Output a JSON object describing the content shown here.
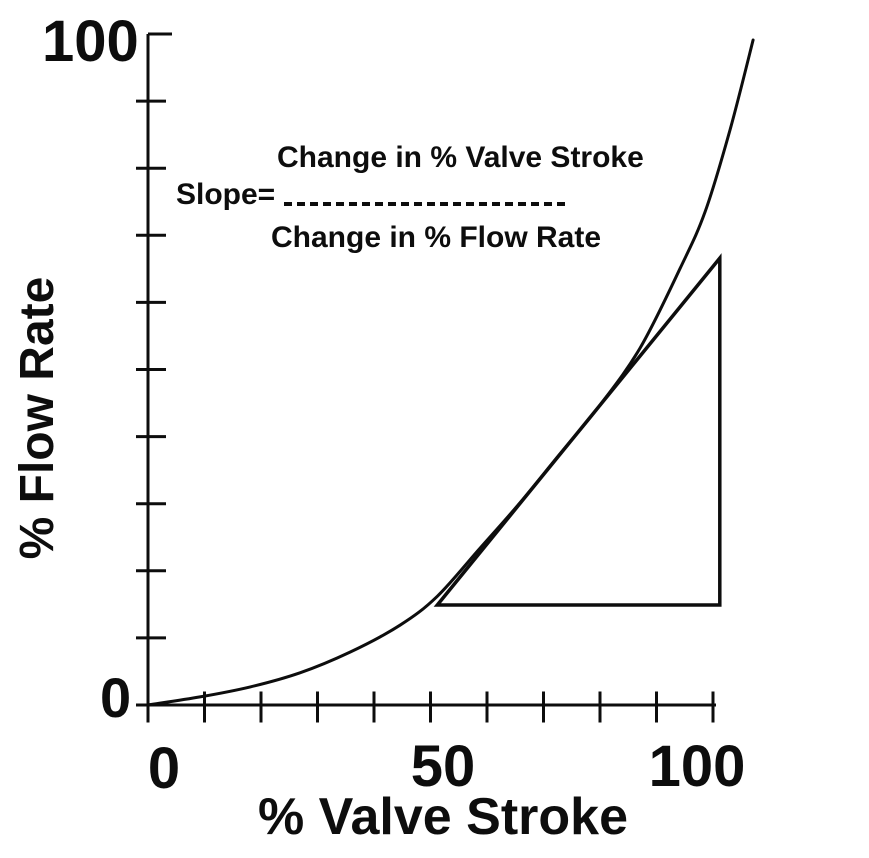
{
  "figure": {
    "background_color": "#ffffff",
    "ink_color": "#0d0d0d",
    "description": "Scanned valve characteristic curve figure"
  },
  "chart_data": {
    "type": "line",
    "title": "",
    "xlabel": "% Valve Stroke",
    "ylabel": "% Flow Rate",
    "xlim": [
      0,
      100
    ],
    "ylim": [
      0,
      100
    ],
    "x_tick_interval": 10,
    "y_tick_interval": 10,
    "grid": false,
    "x_tick_labels": [
      {
        "value": 0,
        "label": "0"
      },
      {
        "value": 50,
        "label": "50"
      },
      {
        "value": 100,
        "label": "100"
      }
    ],
    "y_tick_labels": [
      {
        "value": 0,
        "label": "0"
      },
      {
        "value": 100,
        "label": "100"
      }
    ],
    "series": [
      {
        "name": "equal-percentage valve characteristic curve",
        "type": "curve",
        "points": [
          [
            0,
            0
          ],
          [
            9.2,
            1.2
          ],
          [
            18.1,
            2.7
          ],
          [
            26.9,
            4.8
          ],
          [
            35.8,
            7.9
          ],
          [
            44.6,
            11.9
          ],
          [
            51.2,
            16.2
          ],
          [
            58.8,
            23.4
          ],
          [
            65.8,
            30.1
          ],
          [
            72.9,
            37.4
          ],
          [
            80.0,
            44.7
          ],
          [
            87.1,
            53.2
          ],
          [
            94.2,
            65.1
          ],
          [
            98.6,
            73.5
          ],
          [
            103.0,
            85.7
          ],
          [
            107.1,
            99.1
          ]
        ]
      },
      {
        "name": "slope construction triangle (hypotenuse tangent to curve)",
        "type": "polygon",
        "vertices": [
          [
            51.2,
            14.9
          ],
          [
            101.2,
            14.9
          ],
          [
            101.2,
            66.6
          ]
        ]
      }
    ],
    "annotations": [
      {
        "role": "slope-label",
        "text": "Slope="
      },
      {
        "role": "fraction-numerator",
        "text": "Change in % Valve Stroke"
      },
      {
        "role": "fraction-denominator",
        "text": "Change in % Flow Rate"
      },
      {
        "role": "fraction-divider",
        "style": "dashed-line"
      }
    ],
    "legend": null
  }
}
